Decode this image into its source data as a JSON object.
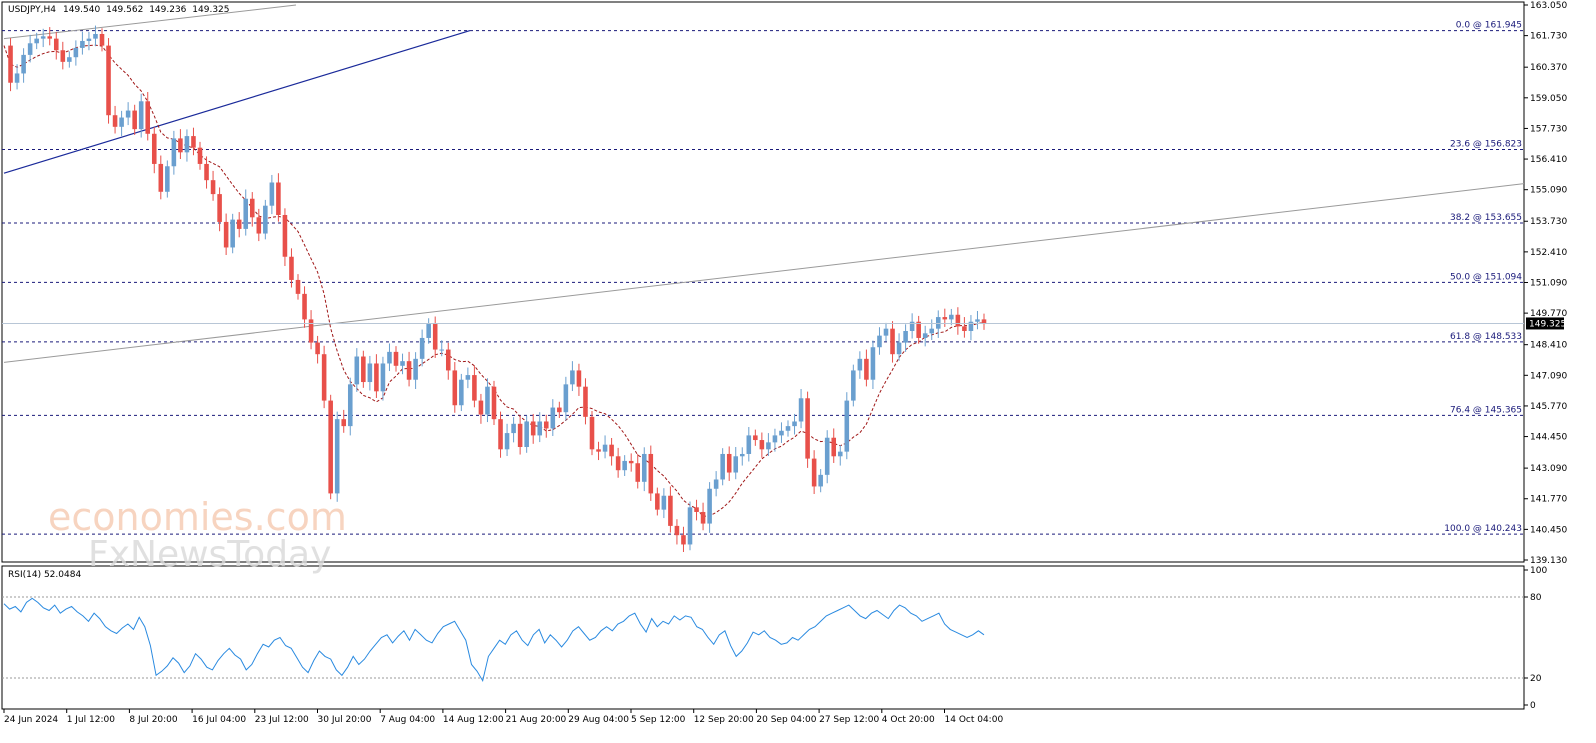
{
  "chart_data": {
    "type": "candlestick",
    "symbol_label": "USDJPY,H4",
    "ohlc_readout": [
      "149.540",
      "149.562",
      "149.236",
      "149.325"
    ],
    "current_price": "149.325",
    "price_axis": {
      "ylim": [
        139.13,
        163.05
      ],
      "ticks": [
        "163.050",
        "161.730",
        "160.370",
        "159.050",
        "157.730",
        "156.410",
        "155.090",
        "153.730",
        "152.410",
        "151.090",
        "149.770",
        "148.410",
        "147.090",
        "145.770",
        "144.450",
        "143.090",
        "141.770",
        "140.450",
        "139.130"
      ]
    },
    "time_axis": {
      "ticks": [
        "24 Jun 2024",
        "1 Jul 12:00",
        "8 Jul 20:00",
        "16 Jul 04:00",
        "23 Jul 12:00",
        "30 Jul 20:00",
        "7 Aug 04:00",
        "14 Aug 12:00",
        "21 Aug 20:00",
        "29 Aug 04:00",
        "5 Sep 12:00",
        "12 Sep 20:00",
        "20 Sep 04:00",
        "27 Sep 12:00",
        "4 Oct 20:00",
        "14 Oct 04:00"
      ]
    },
    "fibonacci_levels": [
      {
        "label": "0.0 @ 161.945",
        "price": 161.945
      },
      {
        "label": "23.6 @ 156.823",
        "price": 156.823
      },
      {
        "label": "38.2 @ 153.655",
        "price": 153.655
      },
      {
        "label": "50.0 @ 151.094",
        "price": 151.094
      },
      {
        "label": "61.8 @ 148.533",
        "price": 148.533
      },
      {
        "label": "76.4 @ 145.365",
        "price": 145.365
      },
      {
        "label": "100.0 @ 140.243",
        "price": 140.243
      }
    ],
    "price_path": [
      161.3,
      159.7,
      160.1,
      160.9,
      161.4,
      161.6,
      161.7,
      161.6,
      161.1,
      160.6,
      160.8,
      161.2,
      161.5,
      161.6,
      161.8,
      161.3,
      158.3,
      157.8,
      158.2,
      158.5,
      157.7,
      158.9,
      157.5,
      156.2,
      155.0,
      156.1,
      157.3,
      156.7,
      157.4,
      156.9,
      156.2,
      155.5,
      154.9,
      153.7,
      152.6,
      153.8,
      153.4,
      154.7,
      153.9,
      153.2,
      154.4,
      155.4,
      154.0,
      152.2,
      151.2,
      150.6,
      149.5,
      148.5,
      148.0,
      146.0,
      142.0,
      145.2,
      144.9,
      146.7,
      147.9,
      146.8,
      147.6,
      146.4,
      147.6,
      148.1,
      147.5,
      147.7,
      146.9,
      147.8,
      148.7,
      149.3,
      148.2,
      148.2,
      147.3,
      145.8,
      146.9,
      147.1,
      146.0,
      145.4,
      146.6,
      145.2,
      143.9,
      144.6,
      145.0,
      144.0,
      145.1,
      144.5,
      145.1,
      144.8,
      145.7,
      145.5,
      146.7,
      147.3,
      146.6,
      145.3,
      143.9,
      143.8,
      144.1,
      143.6,
      143.0,
      143.4,
      143.3,
      142.5,
      143.7,
      142.0,
      141.3,
      141.9,
      140.6,
      140.2,
      139.8,
      141.4,
      141.2,
      140.7,
      142.2,
      142.6,
      143.7,
      142.9,
      143.6,
      143.7,
      144.5,
      144.3,
      143.9,
      144.2,
      144.5,
      144.7,
      144.9,
      145.1,
      146.1,
      143.5,
      142.3,
      142.8,
      144.4,
      143.6,
      143.8,
      146.0,
      147.3,
      147.8,
      146.9,
      148.3,
      148.8,
      149.1,
      148.0,
      148.5,
      149.0,
      149.4,
      148.7,
      148.9,
      149.1,
      149.6,
      149.5,
      149.7,
      149.2,
      149.0,
      149.4,
      149.5,
      149.3
    ],
    "moving_average": "dashed red",
    "rsi": {
      "label": "RSI(14) 52.0484",
      "ylim": [
        0,
        100
      ],
      "levels": [
        20,
        80
      ],
      "ticks": [
        "100",
        "80",
        "20",
        "0"
      ],
      "values": [
        75,
        71,
        73,
        69,
        76,
        79,
        76,
        72,
        70,
        74,
        68,
        71,
        73,
        69,
        66,
        62,
        68,
        64,
        58,
        55,
        53,
        57,
        60,
        56,
        65,
        58,
        44,
        22,
        25,
        29,
        35,
        31,
        24,
        29,
        38,
        34,
        28,
        26,
        33,
        38,
        42,
        37,
        34,
        26,
        30,
        38,
        45,
        43,
        48,
        50,
        44,
        42,
        35,
        28,
        24,
        33,
        40,
        36,
        34,
        26,
        22,
        28,
        36,
        30,
        34,
        40,
        45,
        50,
        52,
        46,
        51,
        55,
        48,
        56,
        52,
        48,
        46,
        53,
        58,
        60,
        62,
        55,
        48,
        30,
        25,
        18,
        36,
        42,
        48,
        45,
        52,
        55,
        48,
        44,
        52,
        56,
        46,
        52,
        48,
        43,
        48,
        55,
        58,
        53,
        48,
        50,
        55,
        58,
        55,
        60,
        62,
        66,
        68,
        60,
        54,
        64,
        58,
        62,
        60,
        66,
        63,
        66,
        65,
        58,
        56,
        50,
        45,
        52,
        55,
        44,
        36,
        40,
        46,
        54,
        52,
        55,
        50,
        48,
        45,
        46,
        50,
        48,
        52,
        56,
        58,
        62,
        66,
        68,
        70,
        72,
        74,
        70,
        66,
        64,
        68,
        70,
        67,
        64,
        70,
        74,
        72,
        68,
        66,
        62,
        64,
        66,
        68,
        60,
        56,
        54,
        52,
        50,
        52,
        55,
        52
      ]
    }
  }
}
